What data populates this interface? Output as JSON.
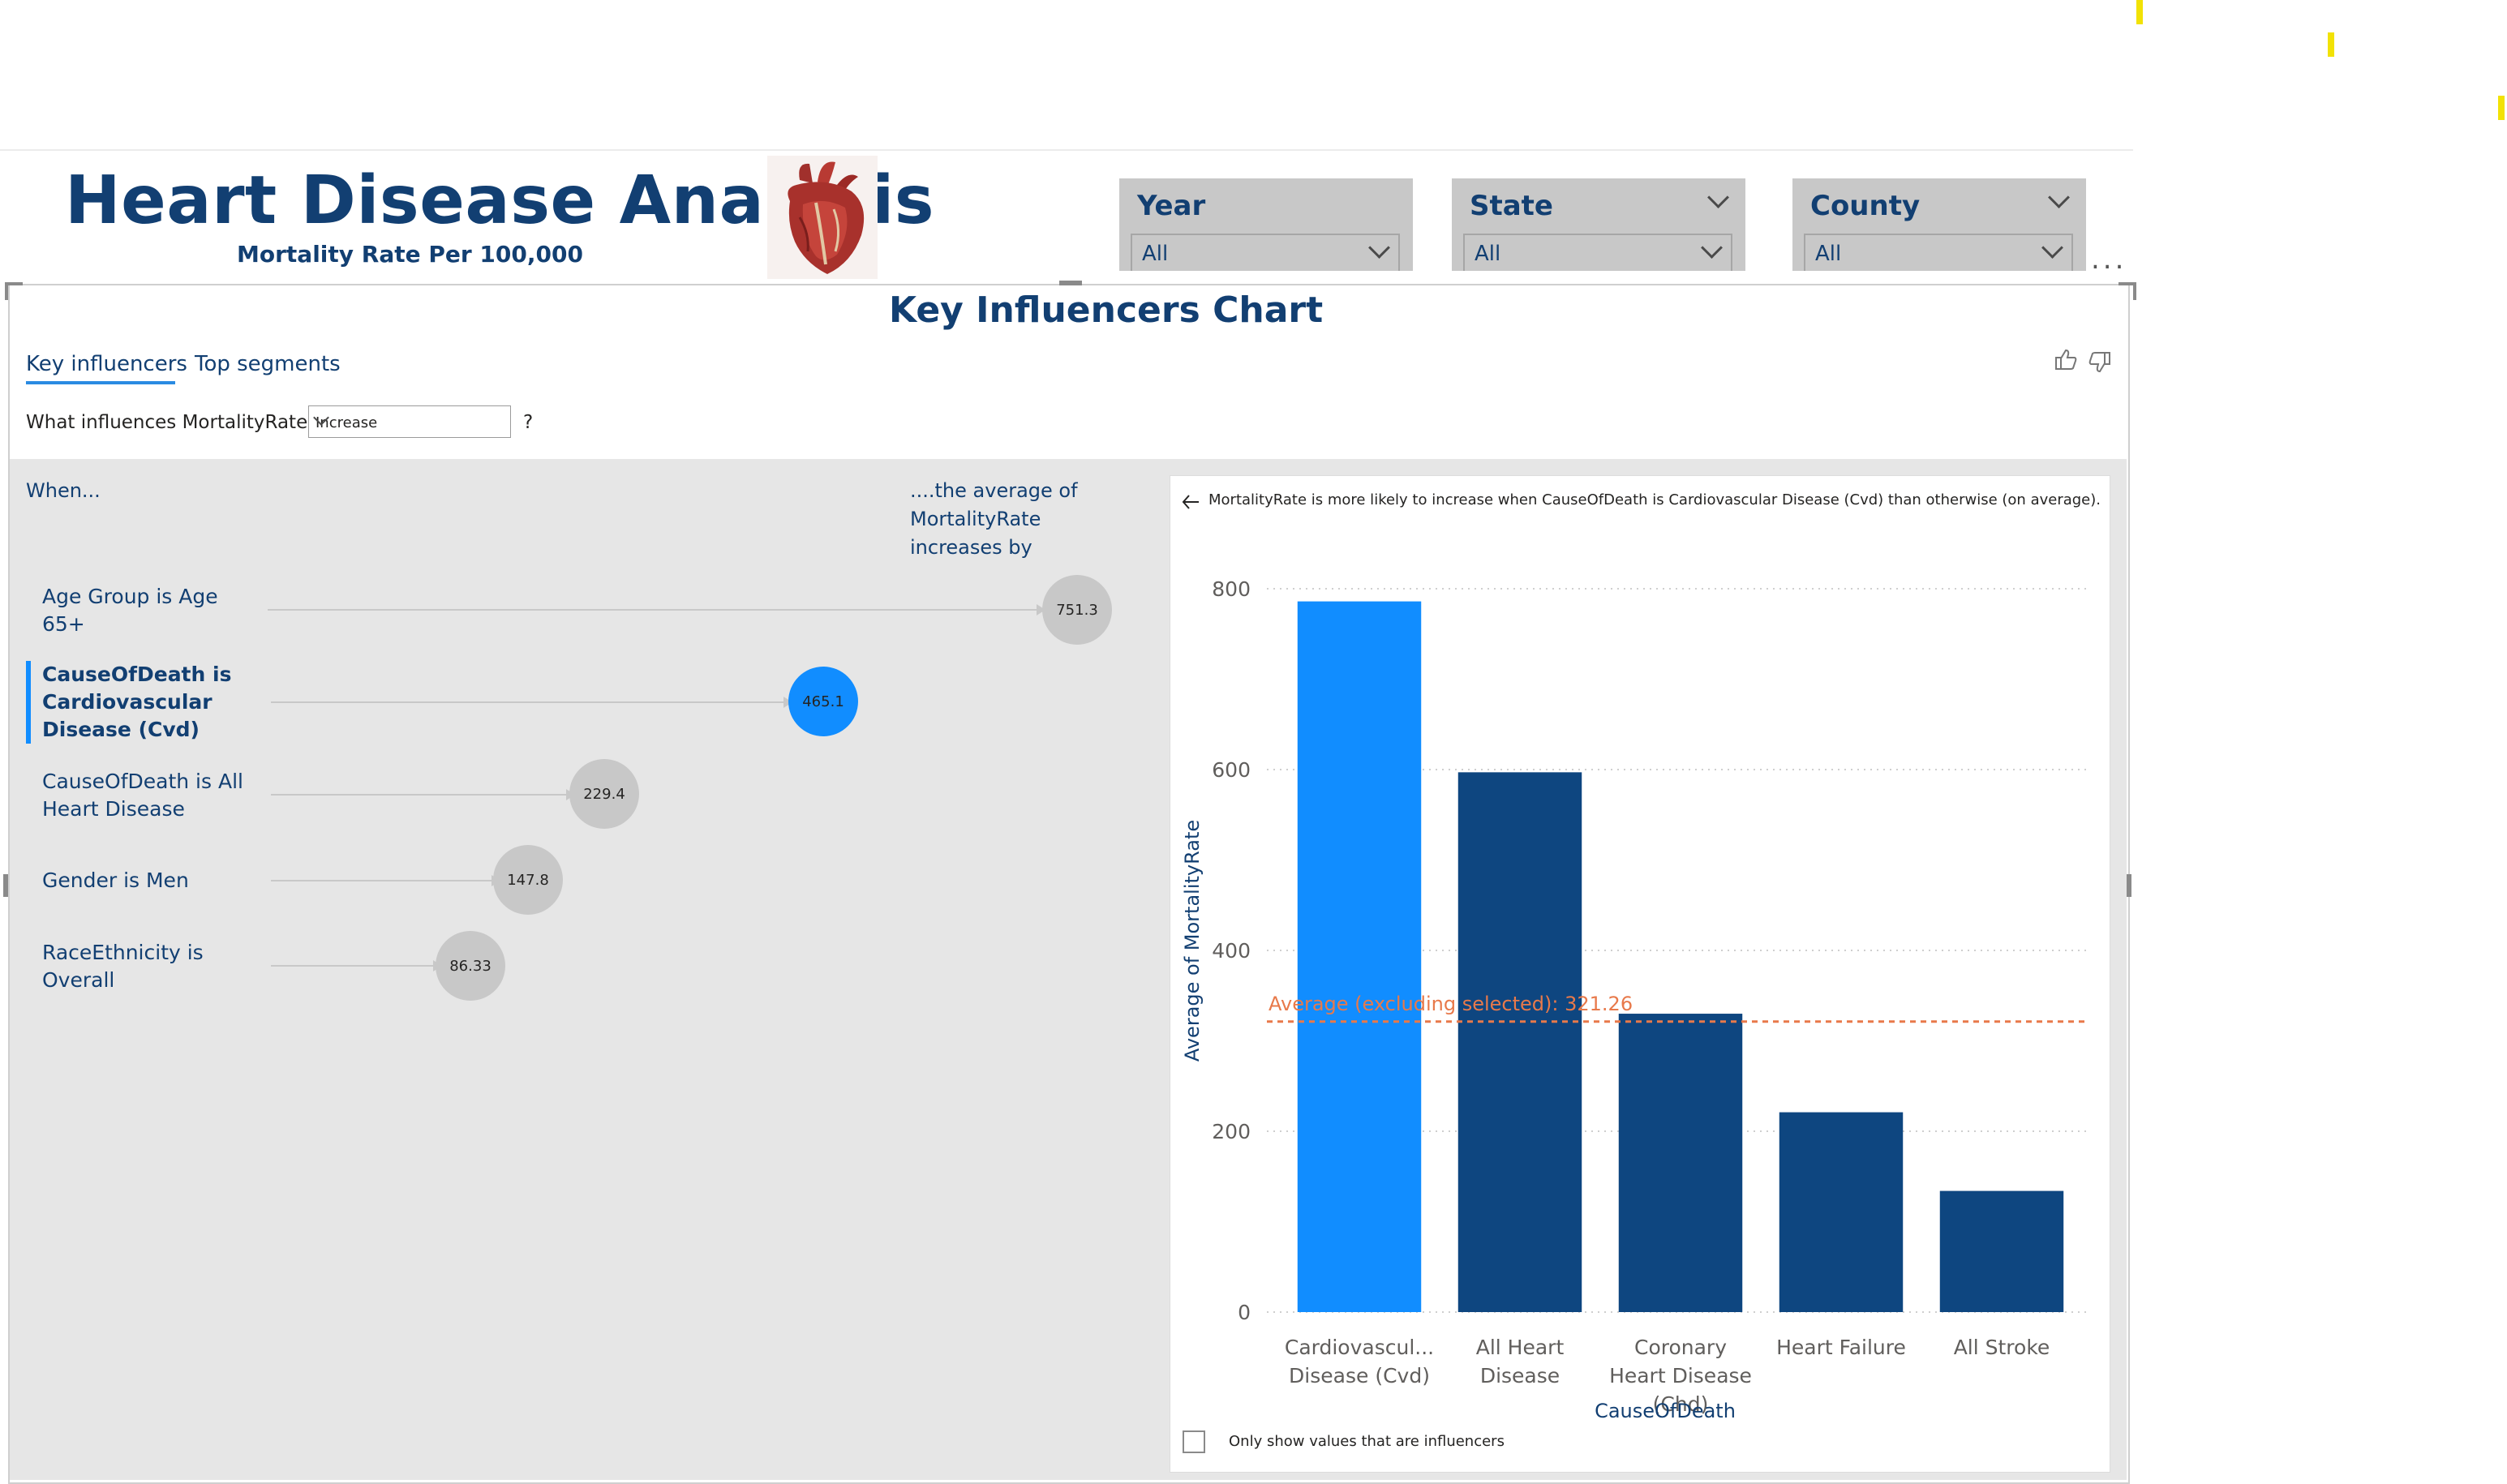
{
  "header": {
    "title": "Heart Disease Analysis",
    "subtitle": "Mortality Rate Per 100,000",
    "logo_icon": "heart-anatomy-icon"
  },
  "slicers": [
    {
      "label": "Year",
      "value": "All"
    },
    {
      "label": "State",
      "value": "All"
    },
    {
      "label": "County",
      "value": "All"
    }
  ],
  "more_options": "...",
  "visual": {
    "title": "Key Influencers Chart",
    "tabs": [
      "Key influencers",
      "Top segments"
    ],
    "question": "What influences MortalityRate to",
    "question_value": "Increase",
    "question_mark": "?",
    "feedback_icons": [
      "thumbs-up-icon",
      "thumbs-down-icon"
    ]
  },
  "influencers": {
    "when_header": "When...",
    "avg_header": [
      "....the average of",
      "MortalityRate",
      "increases by"
    ],
    "items": [
      {
        "lines": [
          "Age Group is Age",
          "65+"
        ],
        "value": 751.3,
        "label": "751.3",
        "selected": false
      },
      {
        "lines": [
          "CauseOfDeath is",
          "Cardiovascular",
          "Disease (Cvd)"
        ],
        "value": 465.1,
        "label": "465.1",
        "selected": true
      },
      {
        "lines": [
          "CauseOfDeath is All",
          "Heart Disease"
        ],
        "value": 229.4,
        "label": "229.4",
        "selected": false
      },
      {
        "lines": [
          "Gender is Men"
        ],
        "value": 147.8,
        "label": "147.8",
        "selected": false
      },
      {
        "lines": [
          "RaceEthnicity is",
          "Overall"
        ],
        "value": 86.33,
        "label": "86.33",
        "selected": false
      }
    ]
  },
  "detail": {
    "explanation": "MortalityRate is more likely to increase when CauseOfDeath is Cardiovascular Disease (Cvd) than otherwise (on average).",
    "checkbox_label": "Only show values that are influencers",
    "checkbox_checked": false
  },
  "chart_data": {
    "type": "bar",
    "categories": [
      [
        "Cardiovascul...",
        "Disease (Cvd)"
      ],
      [
        "All Heart",
        "Disease"
      ],
      [
        "Coronary",
        "Heart Disease",
        "(Chd)"
      ],
      [
        "Heart Failure"
      ],
      [
        "All Stroke"
      ]
    ],
    "values": [
      786,
      597,
      330,
      221,
      134
    ],
    "highlight_index": 0,
    "xlabel": "CauseOfDeath",
    "ylabel": "Average of MortalityRate",
    "ylim": [
      0,
      800
    ],
    "yticks": [
      0,
      200,
      400,
      600,
      800
    ],
    "reference_line": {
      "value": 321.26,
      "label": "Average (excluding selected): 321.26"
    },
    "colors": {
      "selected": "#118dff",
      "default": "#0e4680",
      "reference": "#e8794a"
    }
  }
}
